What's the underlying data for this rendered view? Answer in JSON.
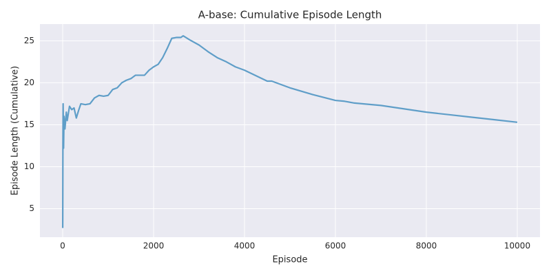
{
  "chart_data": {
    "type": "line",
    "title": "A-base: Cumulative Episode Length",
    "x_label": "Episode",
    "y_label": "Episode Length (Cumulative)",
    "x": [
      1,
      2,
      5,
      10,
      20,
      30,
      50,
      80,
      100,
      150,
      200,
      250,
      300,
      350,
      400,
      500,
      600,
      700,
      800,
      900,
      1000,
      1100,
      1200,
      1300,
      1400,
      1500,
      1600,
      1800,
      1900,
      2000,
      2100,
      2200,
      2300,
      2400,
      2500,
      2600,
      2650,
      2800,
      3000,
      3200,
      3400,
      3600,
      3800,
      4000,
      4500,
      4600,
      5000,
      5500,
      6000,
      6200,
      6400,
      7000,
      7500,
      8000,
      8500,
      9000,
      9500,
      10000
    ],
    "values": [
      2.7,
      4,
      12,
      17.5,
      12.2,
      16,
      14.5,
      16.5,
      15.5,
      17.2,
      16.8,
      17,
      15.8,
      16.7,
      17.5,
      17.4,
      17.5,
      18.2,
      18.5,
      18.4,
      18.5,
      19.2,
      19.4,
      20,
      20.3,
      20.5,
      20.9,
      20.9,
      21.5,
      21.9,
      22.2,
      23,
      24.1,
      25.3,
      25.4,
      25.4,
      25.6,
      25.1,
      24.5,
      23.7,
      23,
      22.5,
      21.9,
      21.5,
      20.2,
      20.2,
      19.4,
      18.6,
      17.9,
      17.8,
      17.6,
      17.3,
      16.9,
      16.5,
      16.2,
      15.9,
      15.6,
      15.3
    ],
    "color": "#5f9ec8",
    "xlim": [
      -500,
      10500
    ],
    "ylim": [
      1.6,
      27.0
    ],
    "xticks": [
      0,
      2000,
      4000,
      6000,
      8000,
      10000
    ],
    "yticks": [
      5,
      10,
      15,
      20,
      25
    ],
    "grid": true
  }
}
